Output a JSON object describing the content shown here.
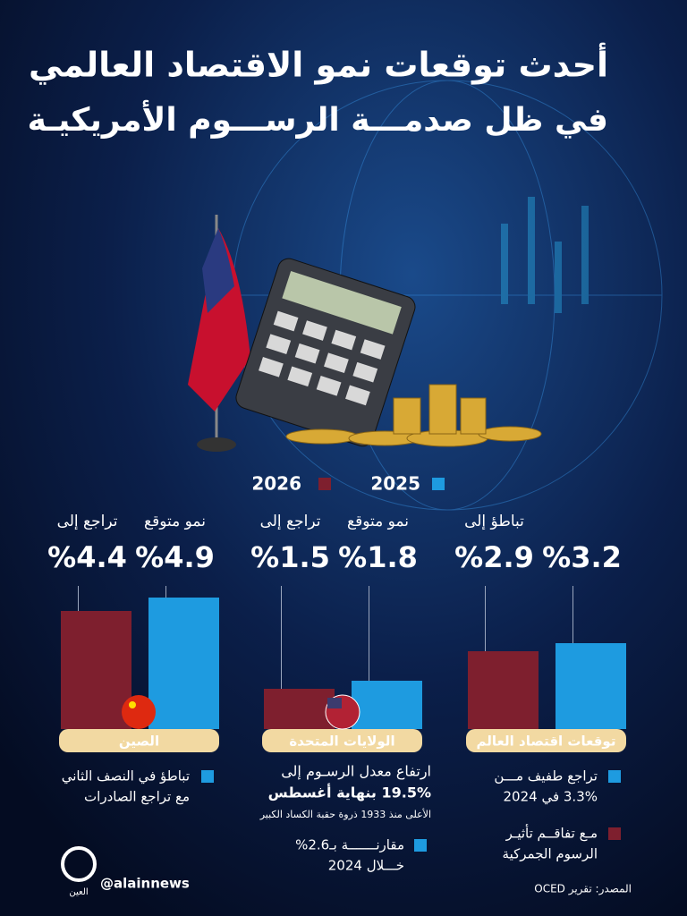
{
  "header": {
    "title_lines": [
      "أحدث توقعات نمو الاقتصاد العالمي",
      "في ظل صدمـــة الرســـوم الأمريكيـة"
    ]
  },
  "chart_data": {
    "type": "bar",
    "categories": [
      "توقعات اقتصاد العالم",
      "الولايات المتحدة",
      "الصين"
    ],
    "series": [
      {
        "name": "2025",
        "color": "#1e9be0",
        "values": [
          3.2,
          1.8,
          4.9
        ],
        "value_labels": [
          "%3.2",
          "%1.8",
          "%4.9"
        ],
        "captions": [
          null,
          "نمو متوقع",
          "نمو متوقع"
        ]
      },
      {
        "name": "2026",
        "color": "#7e1f2e",
        "values": [
          2.9,
          1.5,
          4.4
        ],
        "value_labels": [
          "%2.9",
          "%1.5",
          "%4.4"
        ],
        "captions": [
          "تباطؤ إلى",
          "تراجع إلى",
          "تراجع إلى"
        ]
      }
    ]
  },
  "notes": [
    {
      "lines": [
        "تراجع طفيف مـــن",
        "3.3% في 2024"
      ]
    },
    {
      "lines": [
        "مـع تفاقــم تأثيـر",
        "الرسوم الجمركية"
      ]
    },
    {
      "lines": [
        "ارتفاع معدل الرسـوم إلى",
        "19.5% بنهاية أغسطس",
        "الأعلى منذ 1933 ذروة حقبة الكساد الكبير"
      ]
    },
    {
      "lines": [
        "مقارنـــــــة بـ2.6%",
        "خـــلال 2024"
      ]
    },
    {
      "lines": [
        "تباطؤ في النصف الثاني",
        "مع تراجع الصادرات"
      ]
    }
  ],
  "footer": {
    "source": "المصدر: تقرير OCED",
    "handle": "@alainnews",
    "logo": "العين"
  }
}
